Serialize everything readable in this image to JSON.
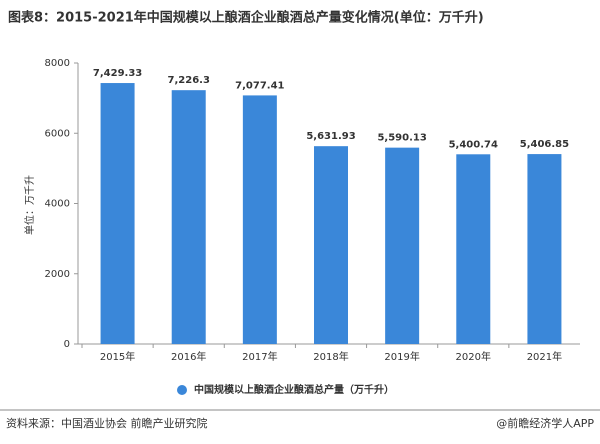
{
  "chart_data": {
    "type": "bar",
    "title": "图表8：2015-2021年中国规模以上酿酒企业酿酒总产量变化情况(单位：万千升)",
    "y_label": "单位：万千升",
    "categories": [
      "2015年",
      "2016年",
      "2017年",
      "2018年",
      "2019年",
      "2020年",
      "2021年"
    ],
    "series": [
      {
        "name": "中国规模以上酿酒企业酿酒总产量（万千升）",
        "color": "#3a87d9",
        "values": [
          7429.33,
          7226.3,
          7077.41,
          5631.93,
          5590.13,
          5400.74,
          5406.85
        ],
        "value_labels": [
          "7,429.33",
          "7,226.3",
          "7,077.41",
          "5,631.93",
          "5,590.13",
          "5,400.74",
          "5,406.85"
        ]
      }
    ],
    "ylim": [
      0,
      8000
    ],
    "yticks": [
      0,
      2000,
      4000,
      6000,
      8000
    ],
    "grid": false,
    "legend": "bottom",
    "source": "资料来源：中国酒业协会 前瞻产业研究院",
    "credit": "@前瞻经济学人APP"
  }
}
